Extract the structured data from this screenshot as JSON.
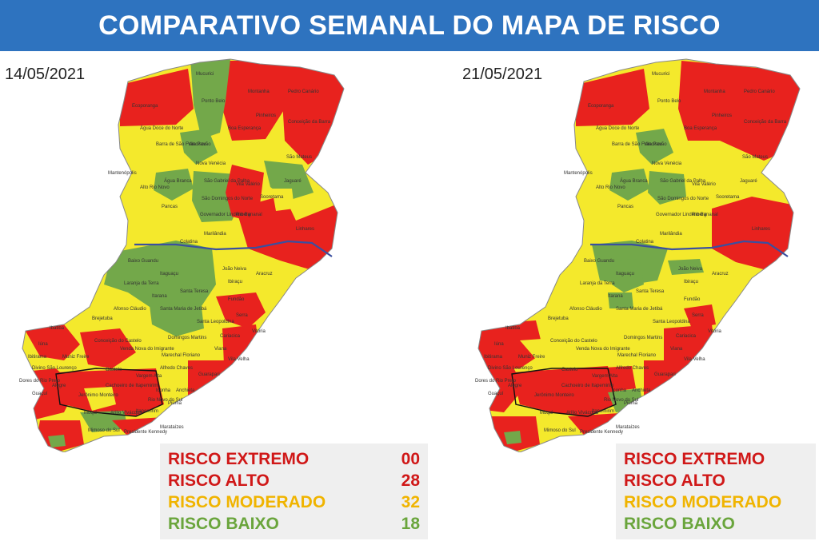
{
  "title": "COMPARATIVO SEMANAL DO MAPA DE RISCO",
  "colors": {
    "title_bar": "#2e73bf",
    "extremo": "#d01818",
    "alto": "#e8221e",
    "moderado": "#f4e92c",
    "baixo": "#73a84a",
    "river": "#3a4fa0"
  },
  "left": {
    "date": "14/05/2021",
    "legend": [
      {
        "label": "RISCO EXTREMO",
        "value": "00",
        "color": "#d01818"
      },
      {
        "label": "RISCO ALTO",
        "value": "28",
        "color": "#d01818"
      },
      {
        "label": "RISCO MODERADO",
        "value": "32",
        "color": "#f0b400"
      },
      {
        "label": "RISCO BAIXO",
        "value": "18",
        "color": "#6aa53c"
      }
    ]
  },
  "right": {
    "date": "21/05/2021",
    "legend": [
      {
        "label": "RISCO EXTREMO",
        "color": "#d01818"
      },
      {
        "label": "RISCO ALTO",
        "color": "#d01818"
      },
      {
        "label": "RISCO MODERADO",
        "color": "#f0b400"
      },
      {
        "label": "RISCO BAIXO",
        "color": "#6aa53c"
      }
    ]
  },
  "map_labels": {
    "mucurici": "Mucurici",
    "montanha": "Montanha",
    "pedro_canario": "Pedro Canário",
    "ecoporanga": "Ecoporanga",
    "ponto_belo": "Ponto Belo",
    "pinheiros": "Pinheiros",
    "conceicao_barra": "Conceição da Barra",
    "agua_doce": "Água Doce do Norte",
    "boa_esperanca": "Boa Esperança",
    "barra_sao_francisco": "Barra de São Francisco",
    "vila_pavao": "Vila Pavão",
    "sao_mateus": "São Mateus",
    "nova_venecia": "Nova Venécia",
    "mantenopolis": "Mantenópolis",
    "alto_rio_novo": "Alto Rio Novo",
    "agua_branca": "Água Branca",
    "sao_gabriel": "São Gabriel da Palha",
    "vila_valerio": "Vila Valério",
    "jaguare": "Jaguaré",
    "sooretama": "Sooretama",
    "pancas": "Pancas",
    "sao_domingos": "São Domingos do Norte",
    "governador": "Governador Lindenberg",
    "rio_bananal": "Rio Bananal",
    "linhares": "Linhares",
    "marilandia": "Marilândia",
    "colatina": "Colatina",
    "baixo_guandu": "Baixo Guandu",
    "joao_neiva": "João Neiva",
    "itaguacu": "Itaguaçu",
    "aracruz": "Aracruz",
    "ibiracu": "Ibiraçu",
    "laranja": "Laranja da Terra",
    "itarana": "Itarana",
    "santa_teresa": "Santa Teresa",
    "fundao": "Fundão",
    "afonso_claudio": "Afonso Cláudio",
    "santa_maria": "Santa Maria de Jetibá",
    "serra": "Serra",
    "brejetuba": "Brejetuba",
    "santa_leopoldina": "Santa Leopoldina",
    "vitoria": "Vitória",
    "ibatiba": "Ibatiba",
    "domingos_martins": "Domingos Martins",
    "cariacica": "Cariacica",
    "iuna": "Iúna",
    "conceicao_castelo": "Conceição do Castelo",
    "venda_nova": "Venda Nova do Imigrante",
    "viana": "Viana",
    "ibitirama": "Ibitirama",
    "muniz_freire": "Muniz Freire",
    "marechal": "Marechal Floriano",
    "vila_velha": "Vila Velha",
    "divino": "Divino São Lourenço",
    "castelo": "Castelo",
    "alfredo_chaves": "Alfredo Chaves",
    "dores": "Dores do Rio Preto",
    "guacui": "Guaçuí",
    "alegre": "Alegre",
    "cachoeiro": "Cachoeiro de Itapemirim",
    "guarapari": "Guarapari",
    "jeronimo": "Jerônimo Monteiro",
    "vargem_alta": "Vargem Alta",
    "anchieta": "Anchieta",
    "iconha": "Iconha",
    "rio_novo_sul": "Rio Novo do Sul",
    "piuma": "Piúma",
    "muqui": "Muqui",
    "atilio": "Atílio Vivácqua",
    "itapemirim": "Itapemirim",
    "mimoso": "Mimoso do Sul",
    "presidente_kennedy": "Presidente Kennedy",
    "marataizes": "Marataízes"
  }
}
